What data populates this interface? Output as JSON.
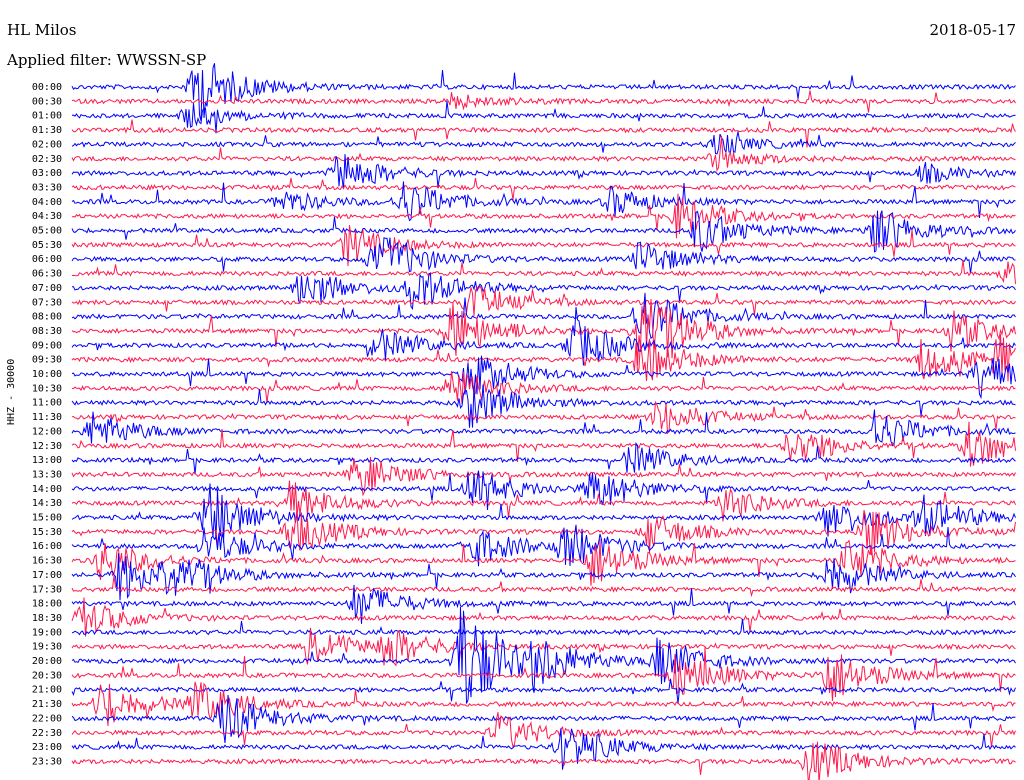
{
  "header": {
    "station": "HL Milos",
    "date": "2018-05-17",
    "filter": "Applied filter: WWSSN-SP"
  },
  "chart_data": {
    "type": "line",
    "title": "",
    "xlabel": "",
    "ylabel": "HHZ - 30000",
    "row_labels": [
      "00:00",
      "00:30",
      "01:00",
      "01:30",
      "02:00",
      "02:30",
      "03:00",
      "03:30",
      "04:00",
      "04:30",
      "05:00",
      "05:30",
      "06:00",
      "06:30",
      "07:00",
      "07:30",
      "08:00",
      "08:30",
      "09:00",
      "09:30",
      "10:00",
      "10:30",
      "11:00",
      "11:30",
      "12:00",
      "12:30",
      "13:00",
      "13:30",
      "14:00",
      "14:30",
      "15:00",
      "15:30",
      "16:00",
      "16:30",
      "17:00",
      "17:30",
      "18:00",
      "18:30",
      "19:00",
      "19:30",
      "20:00",
      "20:30",
      "21:00",
      "21:30",
      "22:00",
      "22:30",
      "23:00",
      "23:30"
    ],
    "colors": [
      "#0000ff",
      "#ff1a4d"
    ],
    "events": [
      {
        "row": 0,
        "x": 0.13,
        "amp": 3.0
      },
      {
        "row": 1,
        "x": 0.4,
        "amp": 0.6
      },
      {
        "row": 2,
        "x": 0.12,
        "amp": 1.0
      },
      {
        "row": 4,
        "x": 0.68,
        "amp": 0.8
      },
      {
        "row": 5,
        "x": 0.68,
        "amp": 0.9
      },
      {
        "row": 6,
        "x": 0.28,
        "amp": 1.8
      },
      {
        "row": 6,
        "x": 0.9,
        "amp": 0.8
      },
      {
        "row": 8,
        "x": 0.22,
        "amp": 1.0
      },
      {
        "row": 8,
        "x": 0.35,
        "amp": 1.8
      },
      {
        "row": 8,
        "x": 0.57,
        "amp": 1.2
      },
      {
        "row": 9,
        "x": 0.64,
        "amp": 1.8
      },
      {
        "row": 10,
        "x": 0.66,
        "amp": 1.8
      },
      {
        "row": 10,
        "x": 0.85,
        "amp": 2.0
      },
      {
        "row": 11,
        "x": 0.29,
        "amp": 1.6
      },
      {
        "row": 12,
        "x": 0.32,
        "amp": 2.6
      },
      {
        "row": 12,
        "x": 0.6,
        "amp": 1.5
      },
      {
        "row": 13,
        "x": 0.99,
        "amp": 1.0
      },
      {
        "row": 14,
        "x": 0.24,
        "amp": 1.8
      },
      {
        "row": 14,
        "x": 0.36,
        "amp": 1.8
      },
      {
        "row": 15,
        "x": 0.42,
        "amp": 1.5
      },
      {
        "row": 16,
        "x": 0.6,
        "amp": 2.5
      },
      {
        "row": 17,
        "x": 0.4,
        "amp": 2.4
      },
      {
        "row": 17,
        "x": 0.6,
        "amp": 4.0
      },
      {
        "row": 17,
        "x": 0.93,
        "amp": 1.6
      },
      {
        "row": 18,
        "x": 0.32,
        "amp": 1.4
      },
      {
        "row": 18,
        "x": 0.53,
        "amp": 2.2
      },
      {
        "row": 19,
        "x": 0.6,
        "amp": 2.2
      },
      {
        "row": 19,
        "x": 0.9,
        "amp": 1.8
      },
      {
        "row": 19,
        "x": 0.98,
        "amp": 1.8
      },
      {
        "row": 20,
        "x": 0.42,
        "amp": 2.0
      },
      {
        "row": 20,
        "x": 0.96,
        "amp": 1.8
      },
      {
        "row": 21,
        "x": 0.4,
        "amp": 1.8
      },
      {
        "row": 22,
        "x": 0.42,
        "amp": 2.0
      },
      {
        "row": 23,
        "x": 0.62,
        "amp": 1.6
      },
      {
        "row": 24,
        "x": 0.02,
        "amp": 1.6
      },
      {
        "row": 24,
        "x": 0.85,
        "amp": 1.8
      },
      {
        "row": 25,
        "x": 0.76,
        "amp": 1.8
      },
      {
        "row": 25,
        "x": 0.95,
        "amp": 2.0
      },
      {
        "row": 26,
        "x": 0.59,
        "amp": 1.4
      },
      {
        "row": 27,
        "x": 0.3,
        "amp": 1.8
      },
      {
        "row": 28,
        "x": 0.42,
        "amp": 1.8
      },
      {
        "row": 28,
        "x": 0.55,
        "amp": 1.8
      },
      {
        "row": 29,
        "x": 0.23,
        "amp": 1.8
      },
      {
        "row": 29,
        "x": 0.69,
        "amp": 1.4
      },
      {
        "row": 30,
        "x": 0.14,
        "amp": 3.0
      },
      {
        "row": 30,
        "x": 0.8,
        "amp": 1.8
      },
      {
        "row": 30,
        "x": 0.9,
        "amp": 1.8
      },
      {
        "row": 31,
        "x": 0.23,
        "amp": 2.0
      },
      {
        "row": 31,
        "x": 0.61,
        "amp": 1.6
      },
      {
        "row": 31,
        "x": 0.84,
        "amp": 2.0
      },
      {
        "row": 32,
        "x": 0.14,
        "amp": 1.6
      },
      {
        "row": 32,
        "x": 0.42,
        "amp": 1.8
      },
      {
        "row": 32,
        "x": 0.52,
        "amp": 2.0
      },
      {
        "row": 33,
        "x": 0.03,
        "amp": 1.8
      },
      {
        "row": 33,
        "x": 0.55,
        "amp": 2.2
      },
      {
        "row": 33,
        "x": 0.82,
        "amp": 2.0
      },
      {
        "row": 34,
        "x": 0.05,
        "amp": 2.0
      },
      {
        "row": 34,
        "x": 0.1,
        "amp": 1.8
      },
      {
        "row": 34,
        "x": 0.8,
        "amp": 2.0
      },
      {
        "row": 36,
        "x": 0.3,
        "amp": 1.8
      },
      {
        "row": 37,
        "x": 0.01,
        "amp": 1.6
      },
      {
        "row": 39,
        "x": 0.25,
        "amp": 1.8
      },
      {
        "row": 39,
        "x": 0.33,
        "amp": 1.6
      },
      {
        "row": 40,
        "x": 0.41,
        "amp": 5.0
      },
      {
        "row": 40,
        "x": 0.49,
        "amp": 1.8
      },
      {
        "row": 40,
        "x": 0.62,
        "amp": 2.0
      },
      {
        "row": 41,
        "x": 0.64,
        "amp": 2.0
      },
      {
        "row": 41,
        "x": 0.8,
        "amp": 2.4
      },
      {
        "row": 43,
        "x": 0.03,
        "amp": 2.0
      },
      {
        "row": 43,
        "x": 0.13,
        "amp": 1.8
      },
      {
        "row": 44,
        "x": 0.16,
        "amp": 2.2
      },
      {
        "row": 45,
        "x": 0.45,
        "amp": 1.6
      },
      {
        "row": 46,
        "x": 0.52,
        "amp": 2.2
      },
      {
        "row": 47,
        "x": 0.78,
        "amp": 2.0
      }
    ]
  }
}
